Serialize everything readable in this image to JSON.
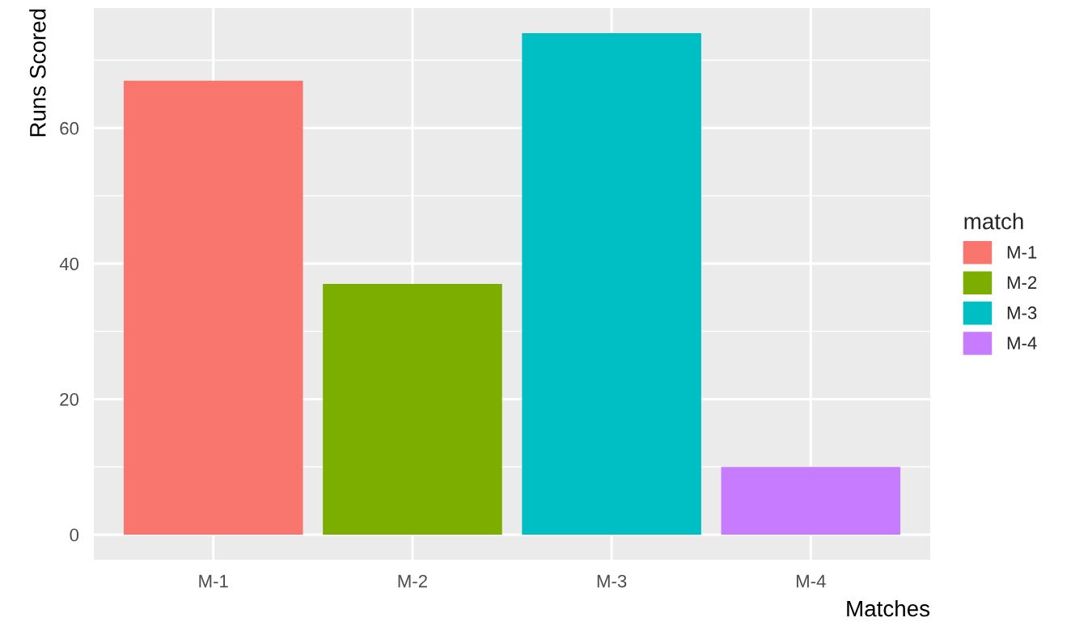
{
  "chart_data": {
    "type": "bar",
    "xlabel": "Matches",
    "ylabel": "Runs Scored",
    "legend_title": "match",
    "categories": [
      "M-1",
      "M-2",
      "M-3",
      "M-4"
    ],
    "series": [
      {
        "name": "M-1",
        "color": "#f8766d",
        "values": [
          67,
          null,
          null,
          null
        ]
      },
      {
        "name": "M-2",
        "color": "#7cae00",
        "values": [
          null,
          37,
          null,
          null
        ]
      },
      {
        "name": "M-3",
        "color": "#00bfc4",
        "values": [
          null,
          null,
          74,
          null
        ]
      },
      {
        "name": "M-4",
        "color": "#c77cff",
        "values": [
          null,
          null,
          null,
          10
        ]
      }
    ],
    "ylim": [
      -3.7,
      77.7
    ],
    "yticks": [
      0,
      20,
      40,
      60
    ],
    "grid": true,
    "legend": "right"
  }
}
